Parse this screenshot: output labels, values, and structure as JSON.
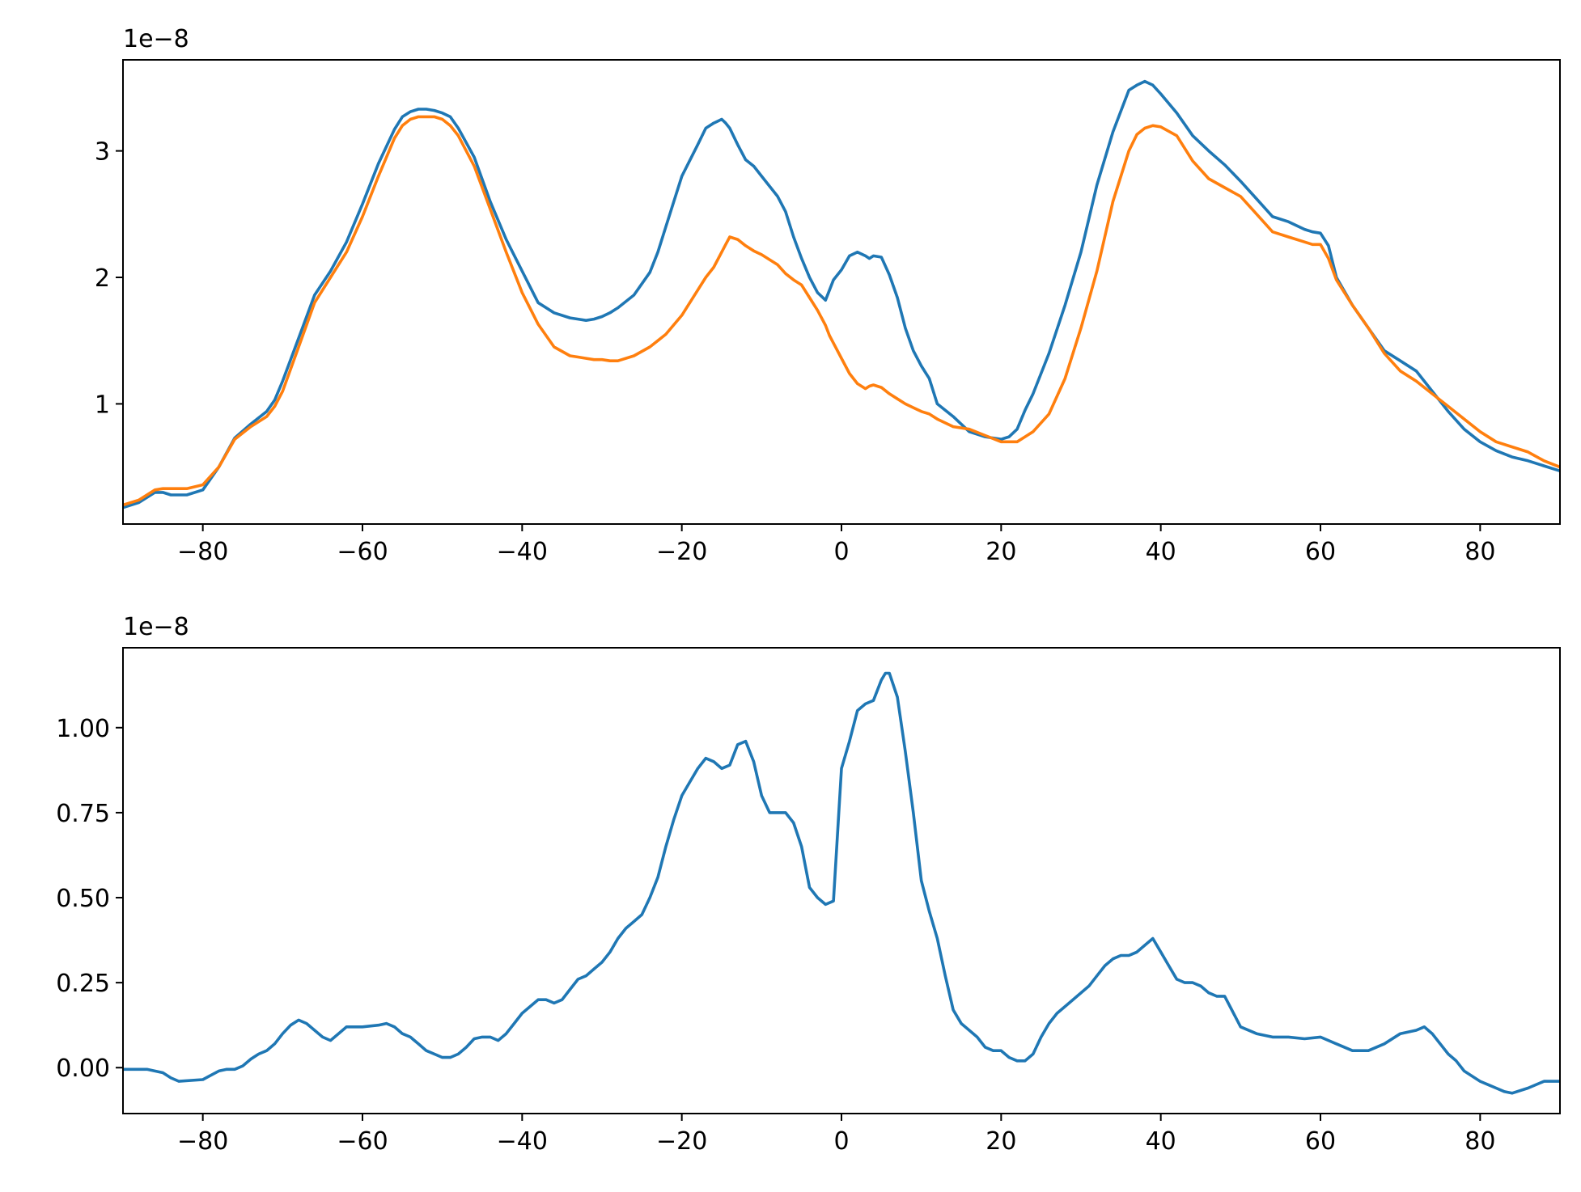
{
  "colors": {
    "series_1": "#1f77b4",
    "series_2": "#ff7f0e",
    "frame": "#000000",
    "background": "#ffffff"
  },
  "chart_data": [
    {
      "type": "line",
      "title": "",
      "xlabel": "",
      "ylabel": "",
      "xlim": [
        -90,
        90
      ],
      "ylim": [
        0.05,
        3.72
      ],
      "y_offset_label": "1e−8",
      "grid": false,
      "legend": "none",
      "x_ticks": [
        -80,
        -60,
        -40,
        -20,
        0,
        20,
        40,
        60,
        80
      ],
      "x_tick_labels": [
        "−80",
        "−60",
        "−40",
        "−20",
        "0",
        "20",
        "40",
        "60",
        "80"
      ],
      "y_ticks": [
        1,
        2,
        3
      ],
      "y_tick_labels": [
        "1",
        "2",
        "3"
      ],
      "series": [
        {
          "color": "#1f77b4",
          "x": [
            -90,
            -88,
            -86,
            -85,
            -84,
            -82,
            -80,
            -78,
            -76,
            -74,
            -72,
            -71,
            -70,
            -68,
            -66,
            -64,
            -62,
            -60,
            -58,
            -56,
            -55,
            -54,
            -53,
            -52,
            -51,
            -50,
            -49,
            -48,
            -46,
            -44,
            -42,
            -40,
            -38,
            -36,
            -34,
            -33,
            -32,
            -31,
            -30,
            -29,
            -28,
            -26,
            -24,
            -23,
            -22,
            -20,
            -18,
            -17,
            -16,
            -15,
            -14.5,
            -14,
            -13,
            -12,
            -11,
            -10,
            -9,
            -8,
            -7,
            -6,
            -5,
            -4,
            -3,
            -2,
            -1.5,
            -1,
            0,
            1,
            2,
            3,
            3.5,
            4,
            5,
            6,
            7,
            8,
            9,
            10,
            11,
            12,
            14,
            16,
            18,
            20,
            21,
            22,
            23,
            24,
            26,
            28,
            30,
            32,
            34,
            36,
            37,
            38,
            39,
            40,
            42,
            44,
            46,
            48,
            50,
            52,
            54,
            56,
            58,
            59,
            60,
            61,
            62,
            64,
            66,
            68,
            70,
            72,
            74,
            76,
            78,
            80,
            82,
            84,
            86,
            88,
            90
          ],
          "y": [
            0.18,
            0.22,
            0.3,
            0.3,
            0.28,
            0.28,
            0.32,
            0.5,
            0.73,
            0.84,
            0.94,
            1.03,
            1.18,
            1.52,
            1.86,
            2.05,
            2.28,
            2.58,
            2.9,
            3.17,
            3.27,
            3.31,
            3.33,
            3.33,
            3.32,
            3.3,
            3.27,
            3.18,
            2.95,
            2.6,
            2.3,
            2.05,
            1.8,
            1.72,
            1.68,
            1.67,
            1.66,
            1.67,
            1.69,
            1.72,
            1.76,
            1.86,
            2.04,
            2.2,
            2.4,
            2.8,
            3.05,
            3.18,
            3.22,
            3.25,
            3.22,
            3.18,
            3.05,
            2.93,
            2.88,
            2.8,
            2.72,
            2.64,
            2.52,
            2.32,
            2.15,
            2.0,
            1.88,
            1.82,
            1.9,
            1.98,
            2.06,
            2.17,
            2.2,
            2.17,
            2.15,
            2.17,
            2.16,
            2.02,
            1.84,
            1.6,
            1.42,
            1.3,
            1.2,
            1.0,
            0.9,
            0.78,
            0.74,
            0.72,
            0.74,
            0.8,
            0.95,
            1.08,
            1.4,
            1.78,
            2.2,
            2.73,
            3.15,
            3.48,
            3.52,
            3.55,
            3.52,
            3.45,
            3.3,
            3.12,
            3.0,
            2.89,
            2.76,
            2.62,
            2.48,
            2.44,
            2.38,
            2.36,
            2.35,
            2.25,
            2.0,
            1.78,
            1.6,
            1.42,
            1.34,
            1.26,
            1.1,
            0.94,
            0.8,
            0.7,
            0.63,
            0.58,
            0.55,
            0.51,
            0.47
          ]
        },
        {
          "color": "#ff7f0e",
          "x": [
            -90,
            -88,
            -86,
            -85,
            -84,
            -82,
            -80,
            -78,
            -76,
            -74,
            -72,
            -71,
            -70,
            -68,
            -66,
            -64,
            -62,
            -60,
            -58,
            -56,
            -55,
            -54,
            -53,
            -52,
            -51,
            -50,
            -49,
            -48,
            -46,
            -44,
            -42,
            -40,
            -38,
            -36,
            -34,
            -33,
            -32,
            -31,
            -30,
            -29,
            -28,
            -26,
            -24,
            -23,
            -22,
            -20,
            -18,
            -17,
            -16,
            -15,
            -14.5,
            -14,
            -13,
            -12,
            -11,
            -10,
            -9,
            -8,
            -7,
            -6,
            -5,
            -4,
            -3,
            -2,
            -1.5,
            -1,
            0,
            1,
            2,
            3,
            3.5,
            4,
            5,
            6,
            7,
            8,
            9,
            10,
            11,
            12,
            14,
            16,
            18,
            20,
            21,
            22,
            23,
            24,
            26,
            28,
            30,
            32,
            34,
            36,
            37,
            38,
            39,
            40,
            42,
            44,
            46,
            48,
            50,
            52,
            54,
            56,
            58,
            59,
            60,
            61,
            62,
            64,
            66,
            68,
            70,
            72,
            74,
            76,
            78,
            80,
            82,
            84,
            86,
            88,
            90
          ],
          "y": [
            0.2,
            0.24,
            0.32,
            0.33,
            0.33,
            0.33,
            0.36,
            0.5,
            0.72,
            0.82,
            0.9,
            0.98,
            1.1,
            1.45,
            1.8,
            2.0,
            2.2,
            2.48,
            2.8,
            3.1,
            3.2,
            3.25,
            3.27,
            3.27,
            3.27,
            3.25,
            3.2,
            3.12,
            2.88,
            2.54,
            2.2,
            1.88,
            1.63,
            1.45,
            1.38,
            1.37,
            1.36,
            1.35,
            1.35,
            1.34,
            1.34,
            1.38,
            1.45,
            1.5,
            1.55,
            1.7,
            1.9,
            2.0,
            2.08,
            2.2,
            2.26,
            2.32,
            2.3,
            2.25,
            2.21,
            2.18,
            2.14,
            2.1,
            2.03,
            1.98,
            1.94,
            1.84,
            1.74,
            1.62,
            1.54,
            1.48,
            1.36,
            1.24,
            1.16,
            1.12,
            1.14,
            1.15,
            1.13,
            1.08,
            1.04,
            1.0,
            0.97,
            0.94,
            0.92,
            0.88,
            0.82,
            0.8,
            0.75,
            0.7,
            0.7,
            0.7,
            0.74,
            0.78,
            0.92,
            1.2,
            1.6,
            2.05,
            2.6,
            3.0,
            3.13,
            3.18,
            3.2,
            3.19,
            3.12,
            2.92,
            2.78,
            2.71,
            2.64,
            2.5,
            2.36,
            2.32,
            2.28,
            2.26,
            2.26,
            2.15,
            1.98,
            1.78,
            1.6,
            1.4,
            1.26,
            1.18,
            1.08,
            0.98,
            0.88,
            0.78,
            0.7,
            0.66,
            0.62,
            0.55,
            0.5
          ]
        }
      ]
    },
    {
      "type": "line",
      "title": "",
      "xlabel": "",
      "ylabel": "",
      "xlim": [
        -90,
        90
      ],
      "ylim": [
        -0.135,
        1.235
      ],
      "y_offset_label": "1e−8",
      "grid": false,
      "legend": "none",
      "x_ticks": [
        -80,
        -60,
        -40,
        -20,
        0,
        20,
        40,
        60,
        80
      ],
      "x_tick_labels": [
        "−80",
        "−60",
        "−40",
        "−20",
        "0",
        "20",
        "40",
        "60",
        "80"
      ],
      "y_ticks": [
        0.0,
        0.25,
        0.5,
        0.75,
        1.0
      ],
      "y_tick_labels": [
        "0.00",
        "0.25",
        "0.50",
        "0.75",
        "1.00"
      ],
      "series": [
        {
          "color": "#1f77b4",
          "x": [
            -90,
            -87,
            -85,
            -84,
            -83,
            -80,
            -78,
            -77,
            -76,
            -75,
            -74,
            -73,
            -72,
            -71,
            -70,
            -69,
            -68,
            -67,
            -66,
            -65,
            -64,
            -63,
            -62,
            -60,
            -58,
            -57,
            -56,
            -55,
            -54,
            -53,
            -52,
            -51,
            -50,
            -49,
            -48,
            -47,
            -46,
            -45,
            -44,
            -43,
            -42,
            -41,
            -40,
            -39,
            -38,
            -37,
            -36,
            -35,
            -34,
            -33,
            -32,
            -31,
            -30,
            -29,
            -28,
            -27,
            -26,
            -25,
            -24,
            -23,
            -22,
            -21,
            -20,
            -19,
            -18,
            -17,
            -16,
            -15,
            -14,
            -13,
            -12,
            -11,
            -10,
            -9,
            -8,
            -7,
            -6,
            -5,
            -4,
            -3,
            -2,
            -1,
            0,
            1,
            2,
            3,
            4,
            5,
            5.5,
            6,
            7,
            8,
            9,
            10,
            11,
            12,
            13,
            14,
            15,
            16,
            17,
            18,
            19,
            20,
            21,
            22,
            23,
            24,
            25,
            26,
            27,
            28,
            29,
            30,
            31,
            32,
            33,
            34,
            35,
            36,
            37,
            38,
            39,
            40,
            41,
            42,
            43,
            44,
            45,
            46,
            47,
            48,
            50,
            52,
            54,
            56,
            58,
            60,
            62,
            64,
            65,
            66,
            68,
            70,
            72,
            73,
            74,
            76,
            77,
            78,
            80,
            81,
            82,
            83,
            84,
            86,
            88,
            90
          ],
          "y": [
            -0.005,
            -0.005,
            -0.015,
            -0.03,
            -0.04,
            -0.035,
            -0.01,
            -0.005,
            -0.005,
            0.005,
            0.025,
            0.04,
            0.05,
            0.07,
            0.1,
            0.125,
            0.14,
            0.13,
            0.11,
            0.09,
            0.08,
            0.1,
            0.12,
            0.12,
            0.125,
            0.13,
            0.12,
            0.1,
            0.09,
            0.07,
            0.05,
            0.04,
            0.03,
            0.03,
            0.04,
            0.06,
            0.085,
            0.09,
            0.09,
            0.08,
            0.1,
            0.13,
            0.16,
            0.18,
            0.2,
            0.2,
            0.19,
            0.2,
            0.23,
            0.26,
            0.27,
            0.29,
            0.31,
            0.34,
            0.38,
            0.41,
            0.43,
            0.45,
            0.5,
            0.56,
            0.65,
            0.73,
            0.8,
            0.84,
            0.88,
            0.91,
            0.9,
            0.88,
            0.89,
            0.95,
            0.96,
            0.9,
            0.8,
            0.75,
            0.75,
            0.75,
            0.72,
            0.65,
            0.53,
            0.5,
            0.48,
            0.49,
            0.88,
            0.96,
            1.05,
            1.07,
            1.08,
            1.14,
            1.16,
            1.16,
            1.09,
            0.93,
            0.75,
            0.55,
            0.46,
            0.38,
            0.27,
            0.17,
            0.13,
            0.11,
            0.09,
            0.06,
            0.05,
            0.05,
            0.03,
            0.02,
            0.02,
            0.04,
            0.09,
            0.13,
            0.16,
            0.18,
            0.2,
            0.22,
            0.24,
            0.27,
            0.3,
            0.32,
            0.33,
            0.33,
            0.34,
            0.36,
            0.38,
            0.34,
            0.3,
            0.26,
            0.25,
            0.25,
            0.24,
            0.22,
            0.21,
            0.21,
            0.12,
            0.1,
            0.09,
            0.09,
            0.085,
            0.09,
            0.07,
            0.05,
            0.05,
            0.05,
            0.07,
            0.1,
            0.11,
            0.12,
            0.1,
            0.04,
            0.02,
            -0.01,
            -0.04,
            -0.05,
            -0.06,
            -0.07,
            -0.075,
            -0.06,
            -0.04,
            -0.04
          ]
        }
      ]
    }
  ]
}
